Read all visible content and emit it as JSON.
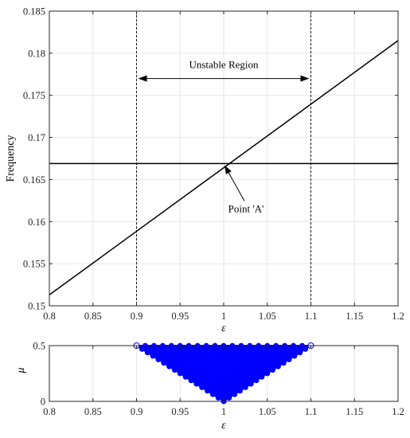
{
  "chart_data": [
    {
      "type": "line",
      "xlabel": "ε",
      "ylabel": "Frequency",
      "xlim": [
        0.8,
        1.2
      ],
      "ylim": [
        0.15,
        0.185
      ],
      "xticks": [
        "0.8",
        "0.85",
        "0.9",
        "0.95",
        "1",
        "1.05",
        "1.1",
        "1.15",
        "1.2"
      ],
      "yticks": [
        "0.15",
        "0.155",
        "0.16",
        "0.165",
        "0.17",
        "0.175",
        "0.18",
        "0.185"
      ],
      "grid": true,
      "series": [
        {
          "x": [
            0.8,
            1.2
          ],
          "y": [
            0.1513,
            0.1815
          ]
        },
        {
          "x": [
            0.8,
            1.2
          ],
          "y": [
            0.1669,
            0.1669
          ]
        }
      ],
      "vlines": [
        0.9,
        1.1
      ],
      "annotations": [
        {
          "text": "Unstable Region",
          "arrow_from": 0.9,
          "arrow_to": 1.1,
          "y": 0.177
        },
        {
          "text": "Point 'A'",
          "text_x": 1.0,
          "text_y": 0.1615,
          "point_x": 1.0,
          "point_y": 0.1669
        }
      ],
      "colors": {
        "line": "#000000",
        "grid": "#e6e6e6"
      }
    },
    {
      "type": "scatter",
      "xlabel": "ε",
      "ylabel": "μ",
      "xlim": [
        0.8,
        1.2
      ],
      "ylim": [
        0,
        0.5
      ],
      "xticks": [
        "0.8",
        "0.85",
        "0.9",
        "0.95",
        "1",
        "1.05",
        "1.1",
        "1.15",
        "1.2"
      ],
      "yticks": [
        "0",
        "0.5"
      ],
      "grid": true,
      "region": {
        "vertices": [
          [
            0.9,
            0.5
          ],
          [
            1.1,
            0.5
          ],
          [
            1.0,
            0
          ]
        ]
      },
      "marker": "circle",
      "colors": {
        "marker": "#0000ff",
        "edge": "#0000ff"
      }
    }
  ]
}
